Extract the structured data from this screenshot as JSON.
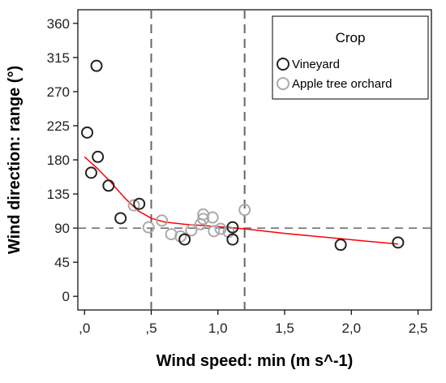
{
  "chart_data": {
    "type": "scatter",
    "xlabel": "Wind speed: min (m s^-1)",
    "ylabel": "Wind direction: range (°)",
    "xlim": [
      -0.05,
      2.6
    ],
    "ylim": [
      -18,
      378
    ],
    "x_ticks": [
      0.0,
      0.5,
      1.0,
      1.5,
      2.0,
      2.5
    ],
    "x_tick_labels": [
      ",0",
      ",5",
      "1,0",
      "1,5",
      "2,0",
      "2,5"
    ],
    "y_ticks": [
      0,
      45,
      90,
      135,
      180,
      225,
      270,
      315,
      360
    ],
    "y_tick_labels": [
      "0",
      "45",
      "90",
      "135",
      "180",
      "225",
      "270",
      "315",
      "360"
    ],
    "legend": {
      "title": "Crop",
      "placement": "top-right"
    },
    "series": [
      {
        "name": "Vineyard",
        "color": "#222222",
        "points": [
          {
            "x": 0.02,
            "y": 216
          },
          {
            "x": 0.09,
            "y": 304
          },
          {
            "x": 0.1,
            "y": 184
          },
          {
            "x": 0.05,
            "y": 163
          },
          {
            "x": 0.18,
            "y": 146
          },
          {
            "x": 0.27,
            "y": 103
          },
          {
            "x": 0.41,
            "y": 122
          },
          {
            "x": 0.75,
            "y": 75
          },
          {
            "x": 1.11,
            "y": 91
          },
          {
            "x": 1.11,
            "y": 75
          },
          {
            "x": 1.92,
            "y": 68
          },
          {
            "x": 2.35,
            "y": 71
          }
        ]
      },
      {
        "name": "Apple tree orchard",
        "color": "#aaaaaa",
        "points": [
          {
            "x": 0.37,
            "y": 120
          },
          {
            "x": 0.48,
            "y": 91
          },
          {
            "x": 0.58,
            "y": 100
          },
          {
            "x": 0.65,
            "y": 82
          },
          {
            "x": 0.72,
            "y": 79
          },
          {
            "x": 0.8,
            "y": 87
          },
          {
            "x": 0.87,
            "y": 95
          },
          {
            "x": 0.89,
            "y": 108
          },
          {
            "x": 0.89,
            "y": 102
          },
          {
            "x": 0.96,
            "y": 104
          },
          {
            "x": 0.97,
            "y": 86
          },
          {
            "x": 1.02,
            "y": 89
          },
          {
            "x": 1.08,
            "y": 85
          },
          {
            "x": 1.2,
            "y": 114
          }
        ]
      }
    ],
    "fit_line": {
      "color": "#ff0000",
      "points": [
        {
          "x": 0.0,
          "y": 184
        },
        {
          "x": 0.1,
          "y": 168
        },
        {
          "x": 0.2,
          "y": 150
        },
        {
          "x": 0.3,
          "y": 130
        },
        {
          "x": 0.4,
          "y": 113
        },
        {
          "x": 0.5,
          "y": 103
        },
        {
          "x": 0.6,
          "y": 98
        },
        {
          "x": 0.75,
          "y": 95
        },
        {
          "x": 1.0,
          "y": 92
        },
        {
          "x": 1.2,
          "y": 89
        },
        {
          "x": 1.5,
          "y": 83
        },
        {
          "x": 1.8,
          "y": 78
        },
        {
          "x": 2.1,
          "y": 73
        },
        {
          "x": 2.35,
          "y": 69
        }
      ]
    },
    "reference_lines": {
      "vertical_x": [
        0.5,
        1.2
      ],
      "horizontal_y": [
        90
      ],
      "color": "#666666",
      "style": "dashed"
    }
  }
}
